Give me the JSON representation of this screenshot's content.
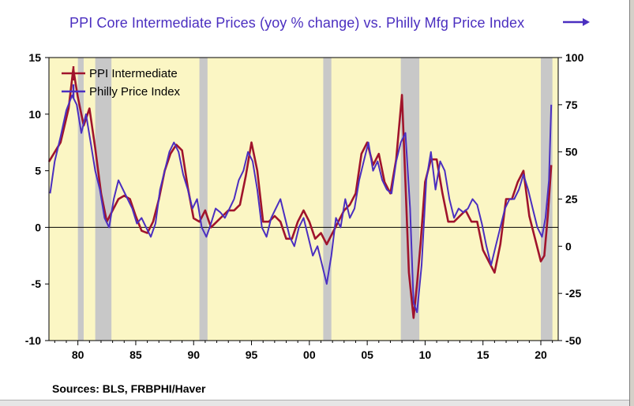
{
  "chart_data": {
    "type": "line",
    "title": "PPI Core Intermediate Prices (yoy % change) vs. Philly Mfg Price Index",
    "title_color": "#4b2fc0",
    "title_arrow": "right-arrow-icon",
    "source": "Sources:  BLS, FRBPHI/Haver",
    "xlim": [
      1977.5,
      2021.5
    ],
    "ylim_left": [
      -10,
      15
    ],
    "ylim_right": [
      -50,
      100
    ],
    "x_ticks": [
      {
        "value": 1980,
        "label": "80"
      },
      {
        "value": 1985,
        "label": "85"
      },
      {
        "value": 1990,
        "label": "90"
      },
      {
        "value": 1995,
        "label": "95"
      },
      {
        "value": 2000,
        "label": "00"
      },
      {
        "value": 2005,
        "label": "05"
      },
      {
        "value": 2010,
        "label": "10"
      },
      {
        "value": 2015,
        "label": "15"
      },
      {
        "value": 2020,
        "label": "20"
      }
    ],
    "y_left_ticks": [
      {
        "value": 15,
        "label": "15"
      },
      {
        "value": 10,
        "label": "10"
      },
      {
        "value": 5,
        "label": "5"
      },
      {
        "value": 0,
        "label": "0"
      },
      {
        "value": -5,
        "label": "-5"
      },
      {
        "value": -10,
        "label": "-10"
      }
    ],
    "y_right_ticks": [
      {
        "value": 100,
        "label": "100"
      },
      {
        "value": 75,
        "label": "75"
      },
      {
        "value": 50,
        "label": "50"
      },
      {
        "value": 25,
        "label": "25"
      },
      {
        "value": 0,
        "label": "0"
      },
      {
        "value": -25,
        "label": "-25"
      },
      {
        "value": -50,
        "label": "-50"
      }
    ],
    "background_color": "#fbf6c4",
    "recession_color": "#c8c8c8",
    "recessions": [
      [
        1980.0,
        1980.5
      ],
      [
        1981.5,
        1982.9
      ],
      [
        1990.5,
        1991.2
      ],
      [
        2001.2,
        2001.9
      ],
      [
        2007.9,
        2009.5
      ],
      [
        2020.0,
        2021.0
      ]
    ],
    "zero_line": true,
    "legend_position": "top-left",
    "series": [
      {
        "name": "PPI Intermediate",
        "axis": "left",
        "color": "#a0142c",
        "x": [
          1977.5,
          1978.5,
          1979.2,
          1979.6,
          1980.0,
          1980.5,
          1981.0,
          1981.5,
          1982.0,
          1982.5,
          1983.0,
          1983.5,
          1984.0,
          1984.5,
          1985.0,
          1985.5,
          1986.0,
          1986.5,
          1987.0,
          1987.5,
          1988.0,
          1988.5,
          1989.0,
          1989.5,
          1990.0,
          1990.5,
          1991.0,
          1991.5,
          1992.0,
          1992.5,
          1993.0,
          1993.5,
          1994.0,
          1994.5,
          1995.0,
          1995.5,
          1996.0,
          1996.5,
          1997.0,
          1997.5,
          1998.0,
          1998.5,
          1999.0,
          1999.5,
          2000.0,
          2000.5,
          2001.0,
          2001.5,
          2002.0,
          2002.5,
          2003.0,
          2003.5,
          2004.0,
          2004.5,
          2005.0,
          2005.5,
          2006.0,
          2006.5,
          2007.0,
          2007.5,
          2008.0,
          2008.3,
          2008.6,
          2009.0,
          2009.3,
          2009.6,
          2010.0,
          2010.5,
          2011.0,
          2011.5,
          2012.0,
          2012.5,
          2013.0,
          2013.5,
          2014.0,
          2014.5,
          2015.0,
          2015.5,
          2016.0,
          2016.5,
          2017.0,
          2017.5,
          2018.0,
          2018.5,
          2019.0,
          2019.5,
          2020.0,
          2020.3,
          2020.6,
          2020.9
        ],
        "values": [
          5.8,
          7.5,
          10.5,
          14.0,
          11.5,
          9.0,
          10.5,
          7.0,
          3.0,
          0.5,
          1.5,
          2.5,
          2.8,
          2.5,
          1.0,
          -0.3,
          -0.5,
          0.5,
          2.5,
          5.0,
          6.5,
          7.3,
          6.8,
          3.5,
          0.8,
          0.5,
          1.5,
          0.0,
          0.5,
          1.0,
          1.5,
          1.5,
          2.0,
          4.5,
          7.5,
          5.0,
          0.5,
          0.5,
          1.0,
          0.5,
          -1.0,
          -1.0,
          0.5,
          1.5,
          0.5,
          -1.0,
          -0.5,
          -1.5,
          -0.5,
          0.5,
          1.5,
          2.0,
          3.0,
          6.5,
          7.5,
          5.5,
          6.5,
          4.0,
          3.0,
          6.0,
          11.7,
          4.0,
          -4.0,
          -8.0,
          -5.0,
          -1.5,
          4.0,
          6.0,
          6.0,
          3.0,
          0.5,
          0.5,
          1.0,
          1.5,
          0.5,
          0.5,
          -2.0,
          -3.0,
          -4.0,
          -1.5,
          2.5,
          2.5,
          4.0,
          5.0,
          1.0,
          -1.0,
          -3.0,
          -2.5,
          1.0,
          5.5
        ]
      },
      {
        "name": "Philly Price Index",
        "axis": "right",
        "color": "#4b2fc0",
        "x": [
          1977.6,
          1978.0,
          1978.5,
          1979.0,
          1979.5,
          1979.9,
          1980.3,
          1980.7,
          1981.1,
          1981.5,
          1981.9,
          1982.3,
          1982.7,
          1983.1,
          1983.5,
          1983.9,
          1984.3,
          1984.7,
          1985.1,
          1985.5,
          1985.9,
          1986.3,
          1986.7,
          1987.1,
          1987.5,
          1987.9,
          1988.3,
          1988.7,
          1989.1,
          1989.5,
          1989.9,
          1990.3,
          1990.7,
          1991.1,
          1991.5,
          1991.9,
          1992.3,
          1992.7,
          1993.1,
          1993.5,
          1993.9,
          1994.3,
          1994.7,
          1995.1,
          1995.5,
          1995.9,
          1996.3,
          1996.7,
          1997.1,
          1997.5,
          1997.9,
          1998.3,
          1998.7,
          1999.1,
          1999.5,
          1999.9,
          2000.3,
          2000.7,
          2001.1,
          2001.5,
          2001.9,
          2002.3,
          2002.7,
          2003.1,
          2003.5,
          2003.9,
          2004.3,
          2004.7,
          2005.1,
          2005.5,
          2005.9,
          2006.3,
          2006.7,
          2007.1,
          2007.5,
          2007.9,
          2008.3,
          2008.7,
          2009.0,
          2009.3,
          2009.7,
          2010.1,
          2010.5,
          2010.9,
          2011.3,
          2011.7,
          2012.1,
          2012.5,
          2012.9,
          2013.3,
          2013.7,
          2014.1,
          2014.5,
          2014.9,
          2015.3,
          2015.7,
          2016.1,
          2016.5,
          2016.9,
          2017.3,
          2017.7,
          2018.1,
          2018.5,
          2018.9,
          2019.3,
          2019.7,
          2020.1,
          2020.4,
          2020.7,
          2020.9
        ],
        "values": [
          28,
          45,
          58,
          72,
          80,
          75,
          60,
          70,
          55,
          40,
          30,
          15,
          10,
          25,
          35,
          30,
          25,
          20,
          12,
          15,
          10,
          5,
          12,
          30,
          40,
          50,
          55,
          50,
          38,
          30,
          20,
          25,
          10,
          5,
          12,
          20,
          18,
          15,
          20,
          25,
          35,
          40,
          50,
          45,
          30,
          10,
          5,
          15,
          20,
          25,
          15,
          5,
          0,
          10,
          15,
          5,
          -5,
          0,
          -10,
          -20,
          -5,
          15,
          10,
          25,
          15,
          20,
          35,
          45,
          55,
          40,
          45,
          35,
          30,
          28,
          45,
          55,
          60,
          20,
          -30,
          -35,
          -10,
          35,
          50,
          30,
          45,
          40,
          25,
          15,
          20,
          18,
          20,
          25,
          22,
          12,
          0,
          -10,
          0,
          10,
          20,
          25,
          25,
          30,
          38,
          30,
          20,
          10,
          5,
          15,
          35,
          75
        ]
      }
    ]
  }
}
